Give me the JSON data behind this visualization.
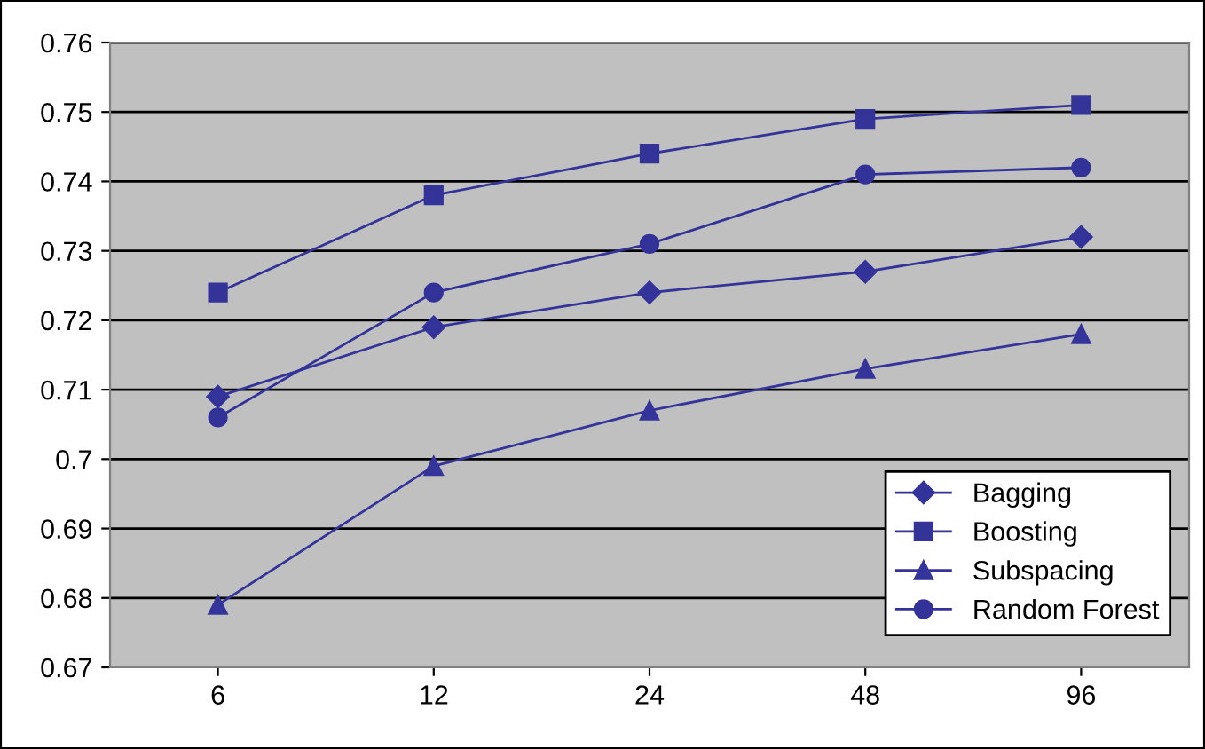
{
  "chart_data": {
    "type": "line",
    "categories": [
      "6",
      "12",
      "24",
      "48",
      "96"
    ],
    "series": [
      {
        "name": "Bagging",
        "color": "#333399",
        "marker": "diamond",
        "values": [
          0.709,
          0.719,
          0.724,
          0.727,
          0.732
        ]
      },
      {
        "name": "Boosting",
        "color": "#333398",
        "marker": "square",
        "values": [
          0.724,
          0.738,
          0.744,
          0.749,
          0.751
        ]
      },
      {
        "name": "Subspacing",
        "color": "#34349a",
        "marker": "triangle",
        "values": [
          0.679,
          0.699,
          0.707,
          0.713,
          0.718
        ]
      },
      {
        "name": "Random Forest",
        "color": "#323298",
        "marker": "circle",
        "values": [
          0.706,
          0.724,
          0.731,
          0.741,
          0.742
        ]
      }
    ],
    "ylim": [
      0.67,
      0.76
    ],
    "yticks": [
      0.67,
      0.68,
      0.69,
      0.7,
      0.71,
      0.72,
      0.73,
      0.74,
      0.75,
      0.76
    ],
    "grid": "y",
    "legend": "bottom right",
    "line_style": "solid"
  }
}
